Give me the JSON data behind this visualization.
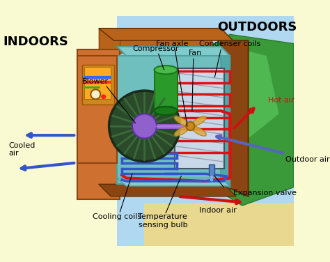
{
  "bg_color": "#FAFAD2",
  "sky_color": "#B0D8F0",
  "grass_color": "#3A9A3A",
  "wall_brown_dark": "#8B4513",
  "wall_brown_mid": "#B8621A",
  "wall_brown_light": "#CD7030",
  "floor_color": "#C8922A",
  "ac_top_color": "#80CCCC",
  "ac_front_color": "#70BFBF",
  "ac_right_color": "#50A8A8",
  "ac_inner_color": "#90D5D5",
  "blower_dark": "#2A4A2A",
  "blower_mid": "#3A6A3A",
  "blower_light": "#4A8A4A",
  "blower_purple": "#9060CC",
  "compressor_dark": "#1A7A1A",
  "compressor_mid": "#2A9A2A",
  "compressor_light": "#4ABB4A",
  "fan_axle_color": "#CC8820",
  "fan_blade_color": "#DDAA40",
  "coil_red": "#DD1111",
  "coil_blue": "#3355CC",
  "coil_purple": "#9940CC",
  "condenser_gray": "#888899",
  "condenser_bg": "#C8D8E8",
  "hot_air_color": "#CC1111",
  "cool_air_color": "#3355CC",
  "outdoor_air_color": "#5566BB",
  "indoor_air_color": "#CC1111",
  "panel_bg": "#CC8030",
  "panel_screen": "#FF9920",
  "label_color": "#000000",
  "title_indoors": "INDOORS",
  "title_outdoors": "OUTDOORS",
  "lbl_blower": "Blower",
  "lbl_compressor": "Compressor",
  "lbl_fan_axle": "Fan axle",
  "lbl_fan": "Fan",
  "lbl_condenser": "Condenser coils",
  "lbl_hot_air": "Hot air",
  "lbl_outdoor_air": "Outdoor air",
  "lbl_cooled_air": "Cooled\nair",
  "lbl_cooling_coils": "Cooling coils",
  "lbl_temp_sensing": "Temperature\nsensing bulb",
  "lbl_expansion": "Expansion valve",
  "lbl_indoor_air": "Indoor air"
}
